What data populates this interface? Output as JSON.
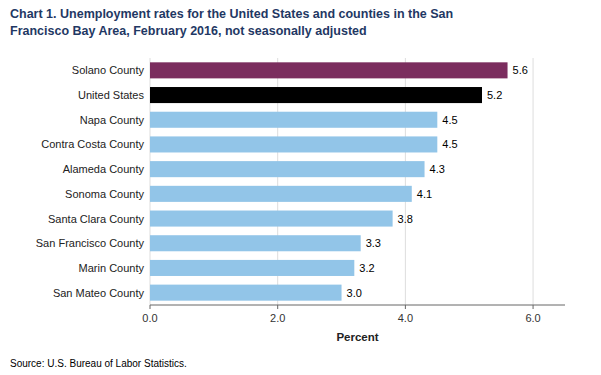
{
  "chart_data": {
    "type": "bar",
    "orientation": "horizontal",
    "title": "Chart 1. Unemployment rates for the United States and counties in the San\nFrancisco Bay Area, February 2016, not seasonally adjusted",
    "categories": [
      "San Mateo County",
      "Marin County",
      "San Francisco County",
      "Santa Clara County",
      "Sonoma County",
      "Alameda County",
      "Contra Costa County",
      "Napa County",
      "United States",
      "Solano County"
    ],
    "values": [
      3.0,
      3.2,
      3.3,
      3.8,
      4.1,
      4.3,
      4.5,
      4.5,
      5.2,
      5.6
    ],
    "value_labels": [
      "3.0",
      "3.2",
      "3.3",
      "3.8",
      "4.1",
      "4.3",
      "4.5",
      "4.5",
      "5.2",
      "5.6"
    ],
    "data_labels": true,
    "colors": [
      "#92C5E8",
      "#92C5E8",
      "#92C5E8",
      "#92C5E8",
      "#92C5E8",
      "#92C5E8",
      "#92C5E8",
      "#92C5E8",
      "#000000",
      "#7B2D5E"
    ],
    "xlim": [
      0,
      6.5
    ],
    "xticks": [
      {
        "value": 0.0,
        "label": "0.0"
      },
      {
        "value": 2.0,
        "label": "2.0"
      },
      {
        "value": 4.0,
        "label": "4.0"
      },
      {
        "value": 6.0,
        "label": "6.0"
      }
    ],
    "xlabel": "Percent",
    "grid": true,
    "annotation": "Source: U.S. Bureau of Labor Statistics."
  }
}
